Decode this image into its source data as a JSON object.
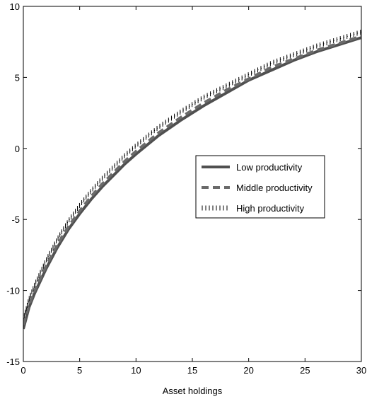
{
  "chart_data": {
    "type": "line",
    "title": "",
    "xlabel": "Asset holdings",
    "ylabel": "",
    "xlim": [
      0,
      30
    ],
    "ylim": [
      -15,
      10
    ],
    "x_ticks": [
      0,
      5,
      10,
      15,
      20,
      25,
      30
    ],
    "y_ticks": [
      -15,
      -10,
      -5,
      0,
      5,
      10
    ],
    "grid": false,
    "legend_position": "center-right",
    "series": [
      {
        "name": "Low productivity",
        "style": "solid",
        "color": "#505050",
        "x": [
          0,
          0.5,
          1,
          2,
          3,
          4,
          5,
          6,
          7,
          8,
          9,
          10,
          12,
          14,
          16,
          18,
          20,
          22,
          24,
          26,
          28,
          30
        ],
        "y": [
          -12.7,
          -11.2,
          -10.2,
          -8.5,
          -7.0,
          -5.7,
          -4.6,
          -3.6,
          -2.7,
          -1.9,
          -1.1,
          -0.4,
          0.9,
          2.0,
          3.0,
          3.9,
          4.8,
          5.5,
          6.2,
          6.8,
          7.3,
          7.8
        ]
      },
      {
        "name": "Middle productivity",
        "style": "dashed",
        "color": "#6a6a6a",
        "x": [
          0,
          0.5,
          1,
          2,
          3,
          4,
          5,
          6,
          7,
          8,
          9,
          10,
          12,
          14,
          16,
          18,
          20,
          22,
          24,
          26,
          28,
          30
        ],
        "y": [
          -12.4,
          -11.0,
          -10.0,
          -8.3,
          -6.8,
          -5.5,
          -4.4,
          -3.4,
          -2.5,
          -1.7,
          -0.9,
          -0.2,
          1.1,
          2.2,
          3.2,
          4.1,
          4.9,
          5.7,
          6.3,
          6.9,
          7.4,
          7.9
        ]
      },
      {
        "name": "High productivity",
        "style": "dotted",
        "color": "#000000",
        "x": [
          0,
          0.5,
          1,
          2,
          3,
          4,
          5,
          6,
          7,
          8,
          9,
          10,
          12,
          14,
          16,
          18,
          20,
          22,
          24,
          26,
          28,
          30
        ],
        "y": [
          -12.0,
          -10.6,
          -9.6,
          -7.9,
          -6.4,
          -5.1,
          -4.0,
          -3.0,
          -2.1,
          -1.3,
          -0.5,
          0.2,
          1.5,
          2.6,
          3.6,
          4.4,
          5.2,
          6.0,
          6.6,
          7.2,
          7.7,
          8.2
        ]
      }
    ]
  }
}
